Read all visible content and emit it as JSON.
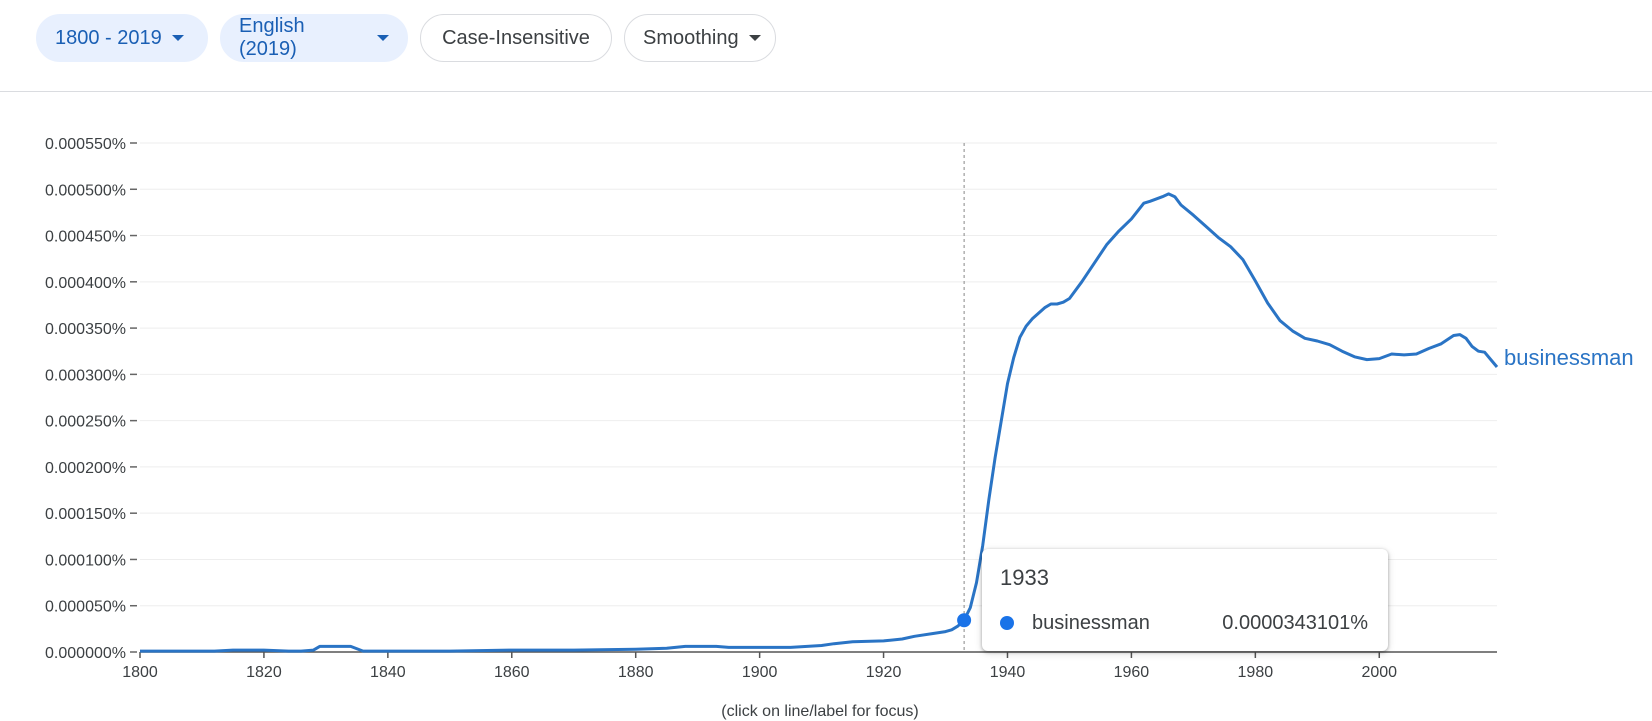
{
  "toolbar": {
    "range_label": "1800 - 2019",
    "corpus_label": "English (2019)",
    "case_label": "Case-Insensitive",
    "smoothing_label": "Smoothing"
  },
  "tooltip": {
    "year": "1933",
    "series": "businessman",
    "value": "0.0000343101%"
  },
  "footnote": "(click on line/label for focus)",
  "colors": {
    "series": "#2a74c5",
    "accent": "#1a73e8",
    "grid": "#eeeeee"
  },
  "chart_data": {
    "type": "line",
    "xlim": [
      1800,
      2019
    ],
    "ylim": [
      0,
      0.00055
    ],
    "y_unit": "%",
    "x_ticks": [
      1800,
      1820,
      1840,
      1860,
      1880,
      1900,
      1920,
      1940,
      1960,
      1980,
      2000
    ],
    "x_tick_labels": [
      "1800",
      "1820",
      "1840",
      "1860",
      "1880",
      "1900",
      "1920",
      "1940",
      "1960",
      "1980",
      "2000"
    ],
    "y_ticks": [
      0,
      5e-05,
      0.0001,
      0.00015,
      0.0002,
      0.00025,
      0.0003,
      0.00035,
      0.0004,
      0.00045,
      0.0005,
      0.00055
    ],
    "y_tick_labels": [
      "0.000000%",
      "0.000050%",
      "0.000100%",
      "0.000150%",
      "0.000200%",
      "0.000250%",
      "0.000300%",
      "0.000350%",
      "0.000400%",
      "0.000450%",
      "0.000500%",
      "0.000550%"
    ],
    "grid": true,
    "legend": "end-of-line label",
    "highlight": {
      "x": 1933,
      "y": 3.43101e-05
    },
    "series": [
      {
        "name": "businessman",
        "x": [
          1800,
          1812,
          1815,
          1820,
          1824,
          1826,
          1828,
          1829,
          1834,
          1836,
          1840,
          1850,
          1860,
          1870,
          1880,
          1885,
          1888,
          1890,
          1893,
          1895,
          1900,
          1905,
          1910,
          1912,
          1915,
          1920,
          1923,
          1925,
          1928,
          1930,
          1931,
          1932,
          1933,
          1934,
          1935,
          1936,
          1937,
          1938,
          1939,
          1940,
          1941,
          1942,
          1943,
          1944,
          1945,
          1946,
          1947,
          1948,
          1949,
          1950,
          1952,
          1954,
          1956,
          1958,
          1960,
          1962,
          1963,
          1965,
          1966,
          1967,
          1968,
          1970,
          1972,
          1974,
          1976,
          1978,
          1980,
          1982,
          1984,
          1986,
          1988,
          1990,
          1992,
          1994,
          1996,
          1998,
          2000,
          2002,
          2004,
          2006,
          2008,
          2010,
          2012,
          2013,
          2014,
          2015,
          2016,
          2017,
          2018,
          2019
        ],
        "y": [
          1e-06,
          1e-06,
          2e-06,
          2e-06,
          1e-06,
          1e-06,
          2e-06,
          6e-06,
          6e-06,
          1e-06,
          1e-06,
          1e-06,
          2e-06,
          2e-06,
          3e-06,
          4e-06,
          6e-06,
          6e-06,
          6e-06,
          5e-06,
          5e-06,
          5e-06,
          7e-06,
          9e-06,
          1.1e-05,
          1.2e-05,
          1.4e-05,
          1.7e-05,
          2e-05,
          2.2e-05,
          2.4e-05,
          2.8e-05,
          3.43101e-05,
          4.8e-05,
          7.5e-05,
          0.000115,
          0.000165,
          0.00021,
          0.00025,
          0.00029,
          0.000318,
          0.00034,
          0.000352,
          0.00036,
          0.000366,
          0.000372,
          0.000376,
          0.000376,
          0.000378,
          0.000382,
          0.0004,
          0.00042,
          0.00044,
          0.000455,
          0.000468,
          0.000485,
          0.000487,
          0.000492,
          0.000495,
          0.000492,
          0.000483,
          0.000472,
          0.00046,
          0.000448,
          0.000438,
          0.000424,
          0.000401,
          0.000377,
          0.000358,
          0.000347,
          0.000339,
          0.000336,
          0.000332,
          0.000325,
          0.000319,
          0.000316,
          0.000317,
          0.000322,
          0.000321,
          0.000322,
          0.000328,
          0.000333,
          0.000342,
          0.000343,
          0.000339,
          0.00033,
          0.000325,
          0.000324,
          0.000316,
          0.000308
        ]
      }
    ]
  }
}
